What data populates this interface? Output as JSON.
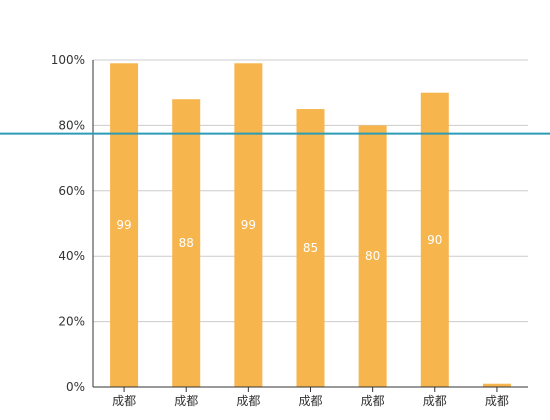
{
  "chart_data": {
    "type": "bar",
    "categories": [
      "成都",
      "成都",
      "成都",
      "成都",
      "成都",
      "成都",
      "成都"
    ],
    "values": [
      99,
      88,
      99,
      85,
      80,
      90,
      1
    ],
    "data_labels": [
      "99",
      "88",
      "99",
      "85",
      "80",
      "90",
      ""
    ],
    "ylim": [
      0,
      100
    ],
    "yticks": [
      0,
      20,
      40,
      60,
      80,
      100
    ],
    "ytick_labels": [
      "0%",
      "20%",
      "40%",
      "60%",
      "80%",
      "100%"
    ],
    "reference_line": {
      "value": 77.5
    },
    "grid": true,
    "colors": {
      "bar": "#f7b54d",
      "reference_line": "#2b9bb6",
      "grid": "#cccccc",
      "axis": "#333333"
    }
  }
}
